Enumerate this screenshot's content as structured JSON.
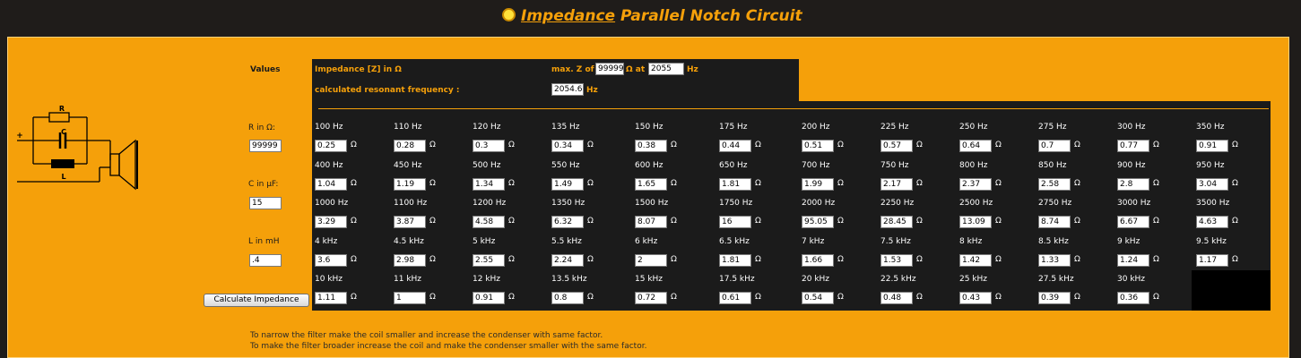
{
  "page": {
    "title_link": "Impedance",
    "title_rest": " Parallel Notch Circuit"
  },
  "diagram": {
    "label_r": "R",
    "label_c": "C",
    "label_l": "L",
    "label_plus": "+"
  },
  "inputs": {
    "values_label": "Values",
    "r_label": "R in Ω:",
    "r_value": "99999",
    "c_label": "C in µF:",
    "c_value": "15",
    "l_label": "L in mH",
    "l_value": ".4",
    "calculate_label": "Calculate Impedance"
  },
  "summary": {
    "impedance_label": "Impedance [Z] in Ω",
    "maxz_label": "max. Z of",
    "maxz_value": "99999",
    "at_label": "Ω at",
    "at_value": "2055",
    "hz1": "Hz",
    "resonant_label": "calculated resonant frequency :",
    "resonant_value": "2054.6",
    "hz2": "Hz"
  },
  "unit": "Ω",
  "grid": [
    [
      [
        "100 Hz",
        "0.25"
      ],
      [
        "110 Hz",
        "0.28"
      ],
      [
        "120 Hz",
        "0.3"
      ],
      [
        "135 Hz",
        "0.34"
      ],
      [
        "150 Hz",
        "0.38"
      ],
      [
        "175 Hz",
        "0.44"
      ],
      [
        "200 Hz",
        "0.51"
      ],
      [
        "225 Hz",
        "0.57"
      ],
      [
        "250 Hz",
        "0.64"
      ],
      [
        "275 Hz",
        "0.7"
      ],
      [
        "300 Hz",
        "0.77"
      ],
      [
        "350 Hz",
        "0.91"
      ]
    ],
    [
      [
        "400 Hz",
        "1.04"
      ],
      [
        "450 Hz",
        "1.19"
      ],
      [
        "500 Hz",
        "1.34"
      ],
      [
        "550 Hz",
        "1.49"
      ],
      [
        "600 Hz",
        "1.65"
      ],
      [
        "650 Hz",
        "1.81"
      ],
      [
        "700 Hz",
        "1.99"
      ],
      [
        "750 Hz",
        "2.17"
      ],
      [
        "800 Hz",
        "2.37"
      ],
      [
        "850 Hz",
        "2.58"
      ],
      [
        "900 Hz",
        "2.8"
      ],
      [
        "950 Hz",
        "3.04"
      ]
    ],
    [
      [
        "1000 Hz",
        "3.29"
      ],
      [
        "1100 Hz",
        "3.87"
      ],
      [
        "1200 Hz",
        "4.58"
      ],
      [
        "1350 Hz",
        "6.32"
      ],
      [
        "1500 Hz",
        "8.07"
      ],
      [
        "1750 Hz",
        "16"
      ],
      [
        "2000 Hz",
        "95.05"
      ],
      [
        "2250 Hz",
        "28.45"
      ],
      [
        "2500 Hz",
        "13.09"
      ],
      [
        "2750 Hz",
        "8.74"
      ],
      [
        "3000 Hz",
        "6.67"
      ],
      [
        "3500 Hz",
        "4.63"
      ]
    ],
    [
      [
        "4 kHz",
        "3.6"
      ],
      [
        "4.5 kHz",
        "2.98"
      ],
      [
        "5 kHz",
        "2.55"
      ],
      [
        "5.5 kHz",
        "2.24"
      ],
      [
        "6 kHz",
        "2"
      ],
      [
        "6.5 kHz",
        "1.81"
      ],
      [
        "7 kHz",
        "1.66"
      ],
      [
        "7.5 kHz",
        "1.53"
      ],
      [
        "8 kHz",
        "1.42"
      ],
      [
        "8.5 kHz",
        "1.33"
      ],
      [
        "9 kHz",
        "1.24"
      ],
      [
        "9.5 kHz",
        "1.17"
      ]
    ],
    [
      [
        "10 kHz",
        "1.11"
      ],
      [
        "11 kHz",
        "1"
      ],
      [
        "12 kHz",
        "0.91"
      ],
      [
        "13.5 kHz",
        "0.8"
      ],
      [
        "15 kHz",
        "0.72"
      ],
      [
        "17.5 kHz",
        "0.61"
      ],
      [
        "20 kHz",
        "0.54"
      ],
      [
        "22.5 kHz",
        "0.48"
      ],
      [
        "25 kHz",
        "0.43"
      ],
      [
        "27.5 kHz",
        "0.39"
      ],
      [
        "30 kHz",
        "0.36"
      ]
    ]
  ],
  "notes": [
    "To narrow the filter make the coil smaller and increase the condenser with same factor.",
    "To make the filter broader increase the coil and make the condenser smaller with the same factor."
  ]
}
